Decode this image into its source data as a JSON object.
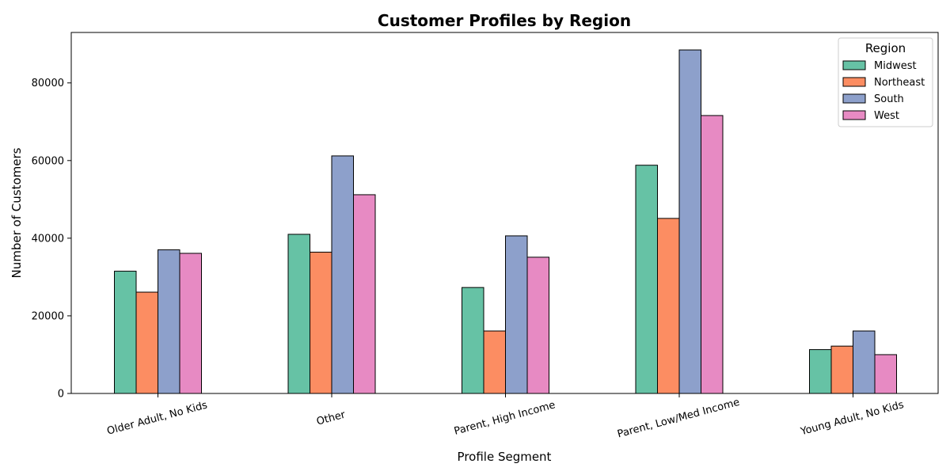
{
  "chart_data": {
    "type": "bar",
    "title": "Customer Profiles by Region",
    "xlabel": "Profile Segment",
    "ylabel": "Number of Customers",
    "categories": [
      "Older Adult, No Kids",
      "Other",
      "Parent, High Income",
      "Parent, Low/Med Income",
      "Young Adult, No Kids"
    ],
    "series": [
      {
        "name": "Midwest",
        "color": "#66c2a5",
        "values": [
          31500,
          41000,
          27300,
          58800,
          11300
        ]
      },
      {
        "name": "Northeast",
        "color": "#fc8d62",
        "values": [
          26100,
          36400,
          16100,
          45100,
          12200
        ]
      },
      {
        "name": "South",
        "color": "#8da0cb",
        "values": [
          37000,
          61200,
          40600,
          88500,
          16100
        ]
      },
      {
        "name": "West",
        "color": "#e78ac3",
        "values": [
          36100,
          51200,
          35100,
          71600,
          10000
        ]
      }
    ],
    "ylim": [
      0,
      93000
    ],
    "yticks": [
      0,
      20000,
      40000,
      60000,
      80000
    ],
    "ytick_labels": [
      "0",
      "20000",
      "40000",
      "60000",
      "80000"
    ],
    "legend": {
      "title": "Region",
      "placement": "top-right"
    },
    "grid": false
  }
}
